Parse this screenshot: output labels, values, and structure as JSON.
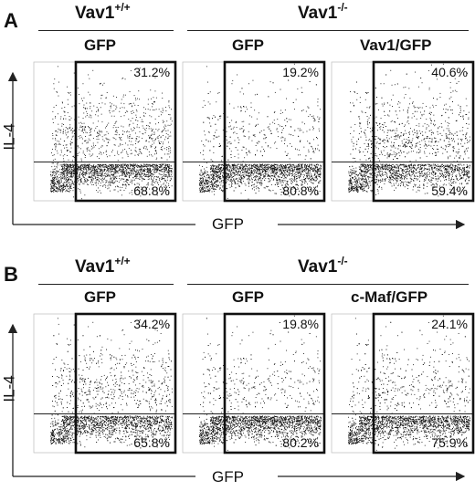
{
  "panels": [
    {
      "letter": "A",
      "genotype_wt": "Vav1",
      "genotype_wt_sup": "+/+",
      "genotype_ko": "Vav1",
      "genotype_ko_sup": "-/-",
      "x_axis_label": "GFP",
      "y_axis_label": "IL-4",
      "plots": [
        {
          "condition": "GFP",
          "upper_pct": "31.2%",
          "lower_pct": "68.8%",
          "upper_fraction": 0.312
        },
        {
          "condition": "GFP",
          "upper_pct": "19.2%",
          "lower_pct": "80.8%",
          "upper_fraction": 0.192
        },
        {
          "condition": "Vav1/GFP",
          "upper_pct": "40.6%",
          "lower_pct": "59.4%",
          "upper_fraction": 0.406
        }
      ]
    },
    {
      "letter": "B",
      "genotype_wt": "Vav1",
      "genotype_wt_sup": "+/+",
      "genotype_ko": "Vav1",
      "genotype_ko_sup": "-/-",
      "x_axis_label": "GFP",
      "y_axis_label": "IL-4",
      "plots": [
        {
          "condition": "GFP",
          "upper_pct": "34.2%",
          "lower_pct": "65.8%",
          "upper_fraction": 0.342
        },
        {
          "condition": "GFP",
          "upper_pct": "19.8%",
          "lower_pct": "80.2%",
          "upper_fraction": 0.198
        },
        {
          "condition": "c-Maf/GFP",
          "upper_pct": "24.1%",
          "lower_pct": "75.9%",
          "upper_fraction": 0.241
        }
      ]
    }
  ]
}
